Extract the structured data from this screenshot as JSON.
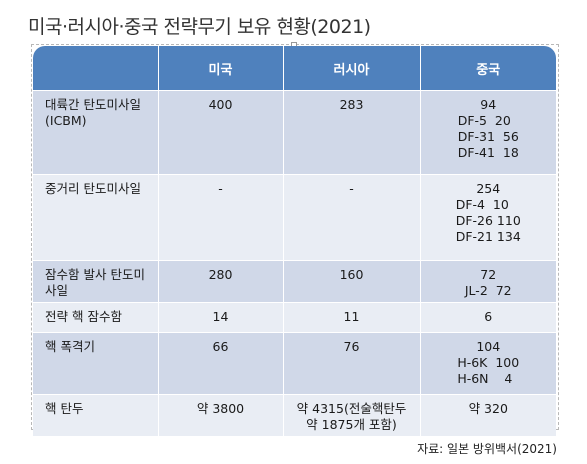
{
  "title": "미국·러시아·중국 전략무기 보유 현황(2021)",
  "columns": [
    "",
    "미국",
    "러시아",
    "중국"
  ],
  "rows": [
    {
      "label": "대륙간 탄도미사일(ICBM)",
      "us": "400",
      "ru": "283",
      "cn": [
        "94",
        "DF-5  20",
        "DF-31  56",
        "DF-41  18"
      ]
    },
    {
      "label": "중거리 탄도미사일",
      "us": "-",
      "ru": "-",
      "cn": [
        "254",
        "DF-4  10",
        "DF-26 110",
        "DF-21 134"
      ]
    },
    {
      "label": "잠수함 발사 탄도미사일",
      "us": "280",
      "ru": "160",
      "cn": [
        "72",
        "JL-2  72"
      ]
    },
    {
      "label": "전략 핵 잠수함",
      "us": "14",
      "ru": "11",
      "cn": [
        "6"
      ]
    },
    {
      "label": "핵 폭격기",
      "us": "66",
      "ru": "76",
      "cn": [
        "104",
        "H-6K  100",
        "H-6N    4"
      ]
    },
    {
      "label": "핵 탄두",
      "us": "약 3800",
      "ru": "약 4315(전술핵탄두 약 1875개 포함)",
      "cn": [
        "약 320"
      ]
    }
  ],
  "source": "자료: 일본 방위백서(2021)"
}
